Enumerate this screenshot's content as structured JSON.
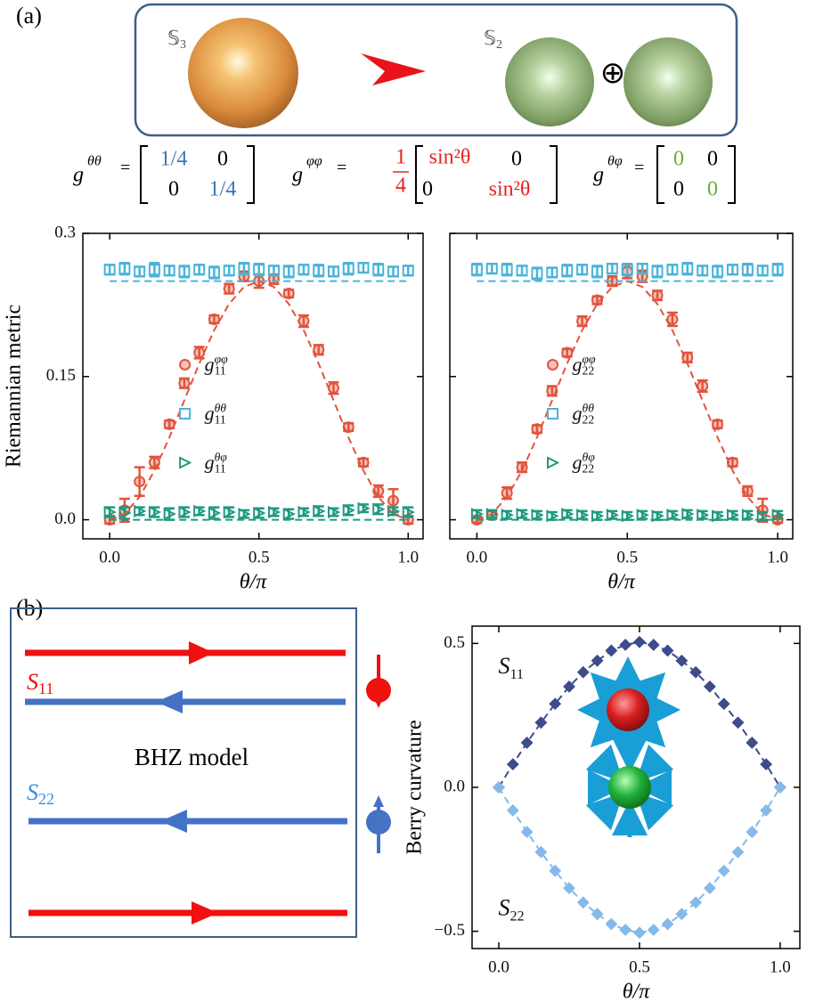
{
  "panel_labels": [
    "(a)",
    "(b)"
  ],
  "sphere_map": {
    "from": {
      "symbol": "𝕊",
      "sub": "3"
    },
    "to": {
      "symbol": "𝕊",
      "sub": "2"
    },
    "operator": "⊕"
  },
  "matrices": [
    {
      "lhs": "g",
      "sup": "θθ",
      "eq": "=",
      "cells": [
        [
          "1/4",
          "0"
        ],
        [
          "0",
          "1/4"
        ]
      ],
      "diag_color": "#3a78b5"
    },
    {
      "lhs": "g",
      "sup": "φφ",
      "eq": "=",
      "frac": [
        "1",
        "4"
      ],
      "cells": [
        [
          "sin²θ",
          "0"
        ],
        [
          "0",
          "sin²θ"
        ]
      ],
      "diag_color": "#e8231f"
    },
    {
      "lhs": "g",
      "sup": "θφ",
      "eq": "=",
      "cells": [
        [
          "0",
          "0"
        ],
        [
          "0",
          "0"
        ]
      ],
      "diag_color": "#6aaa3a"
    }
  ],
  "bhz": {
    "title": "BHZ model",
    "labels": [
      {
        "text": "S",
        "sub": "11",
        "color": "#f01010"
      },
      {
        "text": "S",
        "sub": "22",
        "color": "#2f8fe0"
      }
    ]
  },
  "chart_data": [
    {
      "type": "scatter",
      "ylabel": "Riemannian metric",
      "xlabel": "θ/π",
      "legend": "center",
      "xlim": [
        -0.09,
        1.05
      ],
      "ylim": [
        -0.02,
        0.3
      ],
      "xticks": [
        {
          "value": 0,
          "label": "0.0"
        },
        0.5,
        {
          "value": 1,
          "label": "1.0"
        }
      ],
      "yticks": [
        {
          "value": 0,
          "label": "0.0"
        },
        0.15,
        0.3
      ],
      "x": [
        0,
        0.05,
        0.1,
        0.15,
        0.2,
        0.25,
        0.3,
        0.35,
        0.4,
        0.45,
        0.5,
        0.55,
        0.6,
        0.65,
        0.7,
        0.75,
        0.8,
        0.85,
        0.9,
        0.95,
        1
      ],
      "series": [
        {
          "name": {
            "text": "g",
            "sup": "φφ",
            "sub": "11"
          },
          "color": "#e2543d",
          "marker": "circle",
          "values": [
            0,
            0.01,
            0.04,
            0.06,
            0.1,
            0.143,
            0.175,
            0.21,
            0.242,
            0.255,
            0.25,
            0.252,
            0.237,
            0.208,
            0.178,
            0.138,
            0.097,
            0.06,
            0.03,
            0.02,
            0
          ],
          "errors": [
            0.004,
            0.012,
            0.015,
            0.006,
            0.004,
            0.005,
            0.006,
            0.004,
            0.005,
            0.005,
            0.007,
            0.005,
            0.004,
            0.006,
            0.005,
            0.006,
            0.004,
            0.004,
            0.006,
            0.012,
            0.004
          ]
        },
        {
          "name": {
            "text": "g",
            "sup": "θθ",
            "sub": "11"
          },
          "color": "#4ab4da",
          "marker": "square",
          "values": [
            0.262,
            0.263,
            0.26,
            0.262,
            0.261,
            0.26,
            0.262,
            0.259,
            0.261,
            0.263,
            0.262,
            0.261,
            0.26,
            0.262,
            0.261,
            0.26,
            0.263,
            0.264,
            0.262,
            0.26,
            0.261
          ],
          "errors": [
            0.005,
            0.006,
            0.005,
            0.007,
            0.005,
            0.006,
            0.005,
            0.006,
            0.005,
            0.006,
            0.006,
            0.005,
            0.006,
            0.005,
            0.006,
            0.005,
            0.006,
            0.005,
            0.006,
            0.005,
            0.005
          ]
        },
        {
          "name": {
            "text": "g",
            "sup": "θφ",
            "sub": "11"
          },
          "color": "#1e9a7f",
          "marker": "triangle",
          "values": [
            0.008,
            0.007,
            0.009,
            0.008,
            0.006,
            0.008,
            0.009,
            0.007,
            0.008,
            0.006,
            0.007,
            0.008,
            0.006,
            0.008,
            0.009,
            0.008,
            0.01,
            0.012,
            0.011,
            0.009,
            0.008
          ],
          "errors": [
            0.005,
            0.006,
            0.004,
            0.005,
            0.006,
            0.005,
            0.004,
            0.006,
            0.005,
            0.004,
            0.005,
            0.004,
            0.005,
            0.004,
            0.005,
            0.004,
            0.005,
            0.004,
            0.005,
            0.004,
            0.005
          ]
        },
        {
          "color": "#e2543d",
          "style": "dashed",
          "values": [
            0,
            0.0061,
            0.0239,
            0.0515,
            0.0864,
            0.125,
            0.1636,
            0.1985,
            0.2261,
            0.2439,
            0.25,
            0.2439,
            0.2261,
            0.1985,
            0.1636,
            0.125,
            0.0864,
            0.0515,
            0.0239,
            0.0061,
            0
          ]
        },
        {
          "color": "#4ab4da",
          "style": "dashed",
          "values": [
            0.25,
            0.25,
            0.25,
            0.25,
            0.25,
            0.25,
            0.25,
            0.25,
            0.25,
            0.25,
            0.25,
            0.25,
            0.25,
            0.25,
            0.25,
            0.25,
            0.25,
            0.25,
            0.25,
            0.25,
            0.25
          ]
        },
        {
          "color": "#1e9a7f",
          "style": "dashed",
          "values": [
            0,
            0,
            0,
            0,
            0,
            0,
            0,
            0,
            0,
            0,
            0,
            0,
            0,
            0,
            0,
            0,
            0,
            0,
            0,
            0,
            0
          ]
        }
      ]
    },
    {
      "type": "scatter",
      "xlabel": "θ/π",
      "legend": "center",
      "ytick_labels": false,
      "xlim": [
        -0.09,
        1.05
      ],
      "ylim": [
        -0.02,
        0.3
      ],
      "xticks": [
        {
          "value": 0,
          "label": "0.0"
        },
        0.5,
        {
          "value": 1,
          "label": "1.0"
        }
      ],
      "yticks": [
        0,
        0.15,
        0.3
      ],
      "x": [
        0,
        0.05,
        0.1,
        0.15,
        0.2,
        0.25,
        0.3,
        0.35,
        0.4,
        0.45,
        0.5,
        0.55,
        0.6,
        0.65,
        0.7,
        0.75,
        0.8,
        0.85,
        0.9,
        0.95,
        1
      ],
      "series": [
        {
          "name": {
            "text": "g",
            "sup": "φφ",
            "sub": "22"
          },
          "color": "#e2543d",
          "marker": "circle",
          "values": [
            0,
            0.005,
            0.028,
            0.055,
            0.095,
            0.135,
            0.175,
            0.208,
            0.23,
            0.25,
            0.26,
            0.255,
            0.235,
            0.21,
            0.17,
            0.14,
            0.1,
            0.06,
            0.03,
            0.01,
            0
          ],
          "errors": [
            0.003,
            0.004,
            0.006,
            0.005,
            0.004,
            0.005,
            0.004,
            0.005,
            0.004,
            0.005,
            0.007,
            0.006,
            0.005,
            0.007,
            0.005,
            0.006,
            0.004,
            0.004,
            0.005,
            0.012,
            0.003
          ]
        },
        {
          "name": {
            "text": "g",
            "sup": "θθ",
            "sub": "22"
          },
          "color": "#4ab4da",
          "marker": "square",
          "values": [
            0.262,
            0.263,
            0.262,
            0.261,
            0.258,
            0.259,
            0.261,
            0.262,
            0.26,
            0.263,
            0.262,
            0.263,
            0.26,
            0.262,
            0.263,
            0.261,
            0.26,
            0.262,
            0.262,
            0.261,
            0.262
          ],
          "errors": [
            0.006,
            0.005,
            0.006,
            0.005,
            0.006,
            0.005,
            0.006,
            0.005,
            0.006,
            0.005,
            0.006,
            0.005,
            0.006,
            0.005,
            0.006,
            0.005,
            0.006,
            0.005,
            0.006,
            0.005,
            0.006
          ]
        },
        {
          "name": {
            "text": "g",
            "sup": "θφ",
            "sub": "22"
          },
          "color": "#1e9a7f",
          "marker": "triangle",
          "values": [
            0.006,
            0.006,
            0.005,
            0.006,
            0.005,
            0.004,
            0.006,
            0.005,
            0.004,
            0.005,
            0.004,
            0.005,
            0.004,
            0.005,
            0.006,
            0.005,
            0.004,
            0.005,
            0.005,
            0.004,
            0.005
          ],
          "errors": [
            0.004,
            0.004,
            0.004,
            0.004,
            0.004,
            0.004,
            0.004,
            0.004,
            0.004,
            0.004,
            0.004,
            0.004,
            0.004,
            0.004,
            0.004,
            0.004,
            0.004,
            0.004,
            0.004,
            0.004,
            0.004
          ]
        },
        {
          "color": "#e2543d",
          "style": "dashed",
          "values": [
            0,
            0.0061,
            0.0239,
            0.0515,
            0.0864,
            0.125,
            0.1636,
            0.1985,
            0.2261,
            0.2439,
            0.25,
            0.2439,
            0.2261,
            0.1985,
            0.1636,
            0.125,
            0.0864,
            0.0515,
            0.0239,
            0.0061,
            0
          ]
        },
        {
          "color": "#4ab4da",
          "style": "dashed",
          "values": [
            0.25,
            0.25,
            0.25,
            0.25,
            0.25,
            0.25,
            0.25,
            0.25,
            0.25,
            0.25,
            0.25,
            0.25,
            0.25,
            0.25,
            0.25,
            0.25,
            0.25,
            0.25,
            0.25,
            0.25,
            0.25
          ]
        },
        {
          "color": "#1e9a7f",
          "style": "dashed",
          "values": [
            0,
            0,
            0,
            0,
            0,
            0,
            0,
            0,
            0,
            0,
            0,
            0,
            0,
            0,
            0,
            0,
            0,
            0,
            0,
            0,
            0
          ]
        }
      ]
    },
    {
      "type": "line",
      "ylabel": "Berry curvature",
      "xlabel": "θ/π",
      "xlim": [
        -0.095,
        1.07
      ],
      "ylim": [
        -0.56,
        0.56
      ],
      "xticks": [
        {
          "value": 0,
          "label": "0.0"
        },
        0.5,
        {
          "value": 1,
          "label": "1.0"
        }
      ],
      "yticks": [
        {
          "value": -0.5,
          "label": "−0.5"
        },
        {
          "value": 0,
          "label": "0.0"
        },
        0.5
      ],
      "x": [
        0,
        0.05,
        0.1,
        0.15,
        0.2,
        0.25,
        0.3,
        0.35,
        0.4,
        0.45,
        0.5,
        0.55,
        0.6,
        0.65,
        0.7,
        0.75,
        0.8,
        0.85,
        0.9,
        0.95,
        1
      ],
      "annotations": [
        {
          "text": "S",
          "sub": "11"
        },
        {
          "text": "S",
          "sub": "22"
        }
      ],
      "series": [
        {
          "color": "#3d4c8c",
          "marker": "diamond",
          "style": "dashed",
          "values": [
            0,
            0.08,
            0.155,
            0.225,
            0.29,
            0.35,
            0.4,
            0.44,
            0.475,
            0.495,
            0.505,
            0.495,
            0.475,
            0.44,
            0.4,
            0.35,
            0.29,
            0.225,
            0.155,
            0.08,
            0
          ]
        },
        {
          "color": "#85b9ea",
          "marker": "diamond",
          "style": "dashed",
          "values": [
            0,
            -0.08,
            -0.155,
            -0.225,
            -0.29,
            -0.35,
            -0.4,
            -0.44,
            -0.475,
            -0.495,
            -0.505,
            -0.495,
            -0.475,
            -0.44,
            -0.4,
            -0.35,
            -0.29,
            -0.225,
            -0.155,
            -0.08,
            0
          ]
        }
      ]
    }
  ]
}
